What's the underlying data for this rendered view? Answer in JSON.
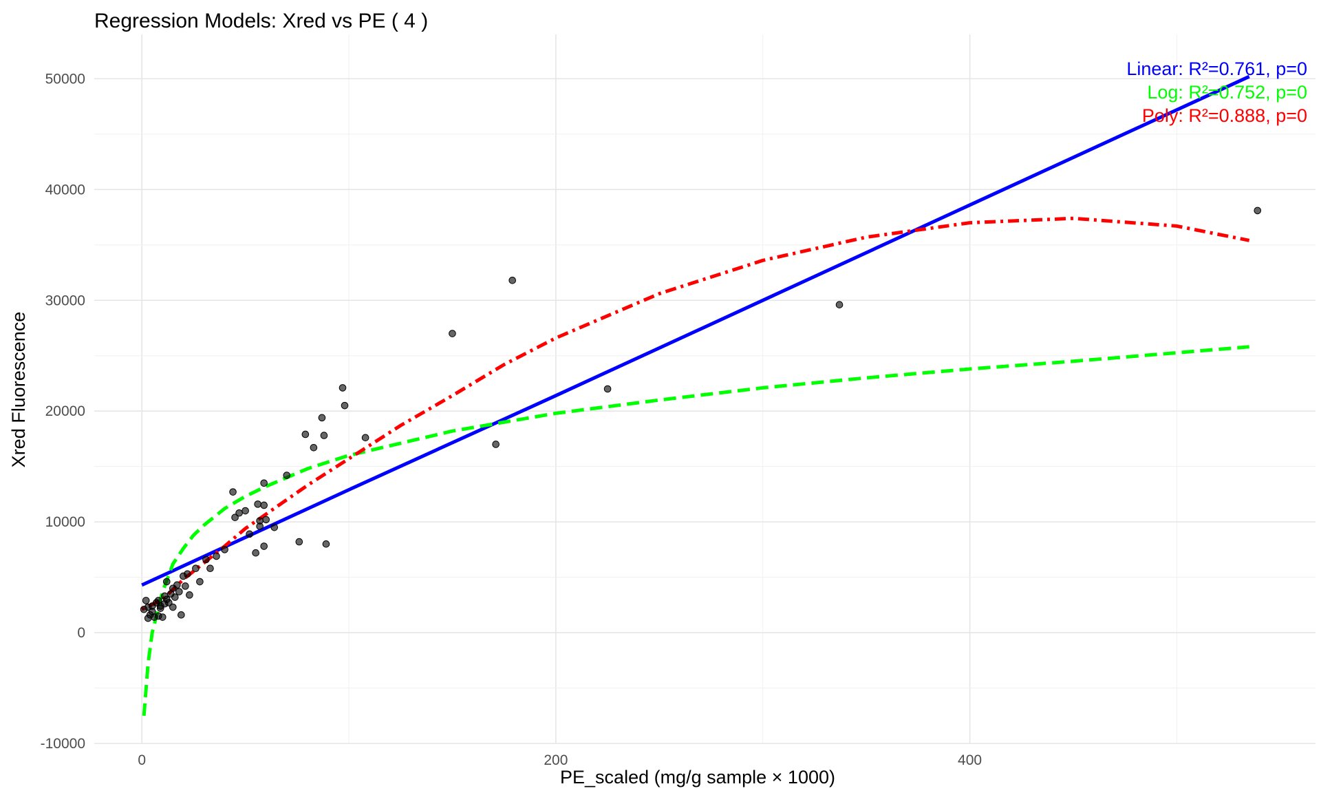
{
  "chart_data": {
    "type": "scatter",
    "title": "Regression Models: Xred vs PE ( 4 )",
    "xlabel": "PE_scaled (mg/g sample × 1000)",
    "ylabel": "Xred Fluorescence",
    "xlim": [
      -23,
      567
    ],
    "ylim": [
      -10000,
      54000
    ],
    "x_ticks": [
      0,
      200,
      400
    ],
    "y_ticks": [
      -10000,
      0,
      10000,
      20000,
      30000,
      40000,
      50000
    ],
    "x_tick_labels": [
      "0",
      "200",
      "400"
    ],
    "y_tick_labels": [
      "-10000",
      "0",
      "10000",
      "20000",
      "30000",
      "40000",
      "50000"
    ],
    "grid": true,
    "points": [
      {
        "x": 1,
        "y": 2100
      },
      {
        "x": 2,
        "y": 2900
      },
      {
        "x": 3,
        "y": 2300
      },
      {
        "x": 3,
        "y": 1300
      },
      {
        "x": 4,
        "y": 1600
      },
      {
        "x": 5,
        "y": 2400
      },
      {
        "x": 5,
        "y": 1900
      },
      {
        "x": 6,
        "y": 1400
      },
      {
        "x": 7,
        "y": 2700
      },
      {
        "x": 8,
        "y": 2900
      },
      {
        "x": 8,
        "y": 1500
      },
      {
        "x": 9,
        "y": 2400
      },
      {
        "x": 9,
        "y": 2200
      },
      {
        "x": 10,
        "y": 1400
      },
      {
        "x": 11,
        "y": 3300
      },
      {
        "x": 11,
        "y": 2600
      },
      {
        "x": 12,
        "y": 4600
      },
      {
        "x": 12,
        "y": 3000
      },
      {
        "x": 13,
        "y": 2700
      },
      {
        "x": 14,
        "y": 3500
      },
      {
        "x": 15,
        "y": 2300
      },
      {
        "x": 15,
        "y": 4000
      },
      {
        "x": 16,
        "y": 3200
      },
      {
        "x": 17,
        "y": 4300
      },
      {
        "x": 18,
        "y": 3700
      },
      {
        "x": 19,
        "y": 1600
      },
      {
        "x": 20,
        "y": 5100
      },
      {
        "x": 21,
        "y": 4200
      },
      {
        "x": 22,
        "y": 5300
      },
      {
        "x": 23,
        "y": 3400
      },
      {
        "x": 26,
        "y": 5800
      },
      {
        "x": 28,
        "y": 4600
      },
      {
        "x": 31,
        "y": 6600
      },
      {
        "x": 33,
        "y": 5800
      },
      {
        "x": 36,
        "y": 6900
      },
      {
        "x": 40,
        "y": 7500
      },
      {
        "x": 44,
        "y": 12700
      },
      {
        "x": 45,
        "y": 10400
      },
      {
        "x": 47,
        "y": 10800
      },
      {
        "x": 50,
        "y": 11000
      },
      {
        "x": 52,
        "y": 8900
      },
      {
        "x": 55,
        "y": 7200
      },
      {
        "x": 56,
        "y": 11600
      },
      {
        "x": 57,
        "y": 10100
      },
      {
        "x": 57,
        "y": 9600
      },
      {
        "x": 59,
        "y": 13500
      },
      {
        "x": 59,
        "y": 11500
      },
      {
        "x": 59,
        "y": 7800
      },
      {
        "x": 60,
        "y": 10200
      },
      {
        "x": 64,
        "y": 9500
      },
      {
        "x": 70,
        "y": 14200
      },
      {
        "x": 76,
        "y": 8200
      },
      {
        "x": 79,
        "y": 17900
      },
      {
        "x": 83,
        "y": 16700
      },
      {
        "x": 87,
        "y": 19400
      },
      {
        "x": 88,
        "y": 17800
      },
      {
        "x": 89,
        "y": 8000
      },
      {
        "x": 97,
        "y": 22100
      },
      {
        "x": 98,
        "y": 20500
      },
      {
        "x": 108,
        "y": 17600
      },
      {
        "x": 150,
        "y": 27000
      },
      {
        "x": 171,
        "y": 17000
      },
      {
        "x": 179,
        "y": 31800
      },
      {
        "x": 225,
        "y": 22000
      },
      {
        "x": 337,
        "y": 29600
      },
      {
        "x": 539,
        "y": 38100
      }
    ],
    "series": [
      {
        "type": "line",
        "style": "solid",
        "color": "#0000ff",
        "x": [
          0,
          100,
          200,
          300,
          400,
          535
        ],
        "y": [
          4300,
          12900,
          21400,
          30000,
          38600,
          50200
        ]
      },
      {
        "type": "line",
        "style": "dashed",
        "color": "#00ff00",
        "x": [
          1,
          3,
          5,
          7,
          10,
          15,
          20,
          25,
          30,
          40,
          50,
          60,
          80,
          100,
          150,
          200,
          250,
          300,
          350,
          400,
          450,
          535
        ],
        "y": [
          -7500,
          -2800,
          0,
          1500,
          3700,
          6200,
          7600,
          8800,
          9700,
          11200,
          12300,
          13200,
          14800,
          16000,
          18200,
          19800,
          21000,
          22100,
          23000,
          23800,
          24500,
          25800
        ]
      },
      {
        "type": "line",
        "style": "dot-dash",
        "color": "#ff0000",
        "x": [
          0,
          10,
          20,
          30,
          40,
          50,
          60,
          80,
          100,
          125,
          150,
          175,
          200,
          250,
          300,
          350,
          400,
          450,
          500,
          535
        ],
        "y": [
          2100,
          3000,
          4800,
          6300,
          7800,
          9400,
          10700,
          13300,
          15700,
          18700,
          21400,
          24200,
          26600,
          30600,
          33600,
          35700,
          37000,
          37400,
          36700,
          35400
        ]
      }
    ],
    "annotations": [
      {
        "text": "Linear: R²=0.761, p=0",
        "color": "#0000ff"
      },
      {
        "text": "Log: R²=0.752, p=0",
        "color": "#00ff00"
      },
      {
        "text": "Poly: R²=0.888, p=0",
        "color": "#ff0000"
      }
    ]
  }
}
